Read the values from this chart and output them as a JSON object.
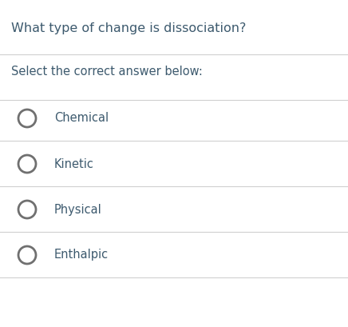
{
  "title": "What type of change is dissociation?",
  "subtitle": "Select the correct answer below:",
  "options": [
    "Chemical",
    "Kinetic",
    "Physical",
    "Enthalpic"
  ],
  "title_color": "#3d5a6e",
  "subtitle_color": "#3d5a6e",
  "option_color": "#3d5a6e",
  "circle_edge_color": "#707070",
  "line_color": "#d0d0d0",
  "bg_color": "#ffffff",
  "title_fontsize": 11.5,
  "subtitle_fontsize": 10.5,
  "option_fontsize": 10.5,
  "fig_width": 4.36,
  "fig_height": 4.09,
  "dpi": 100
}
